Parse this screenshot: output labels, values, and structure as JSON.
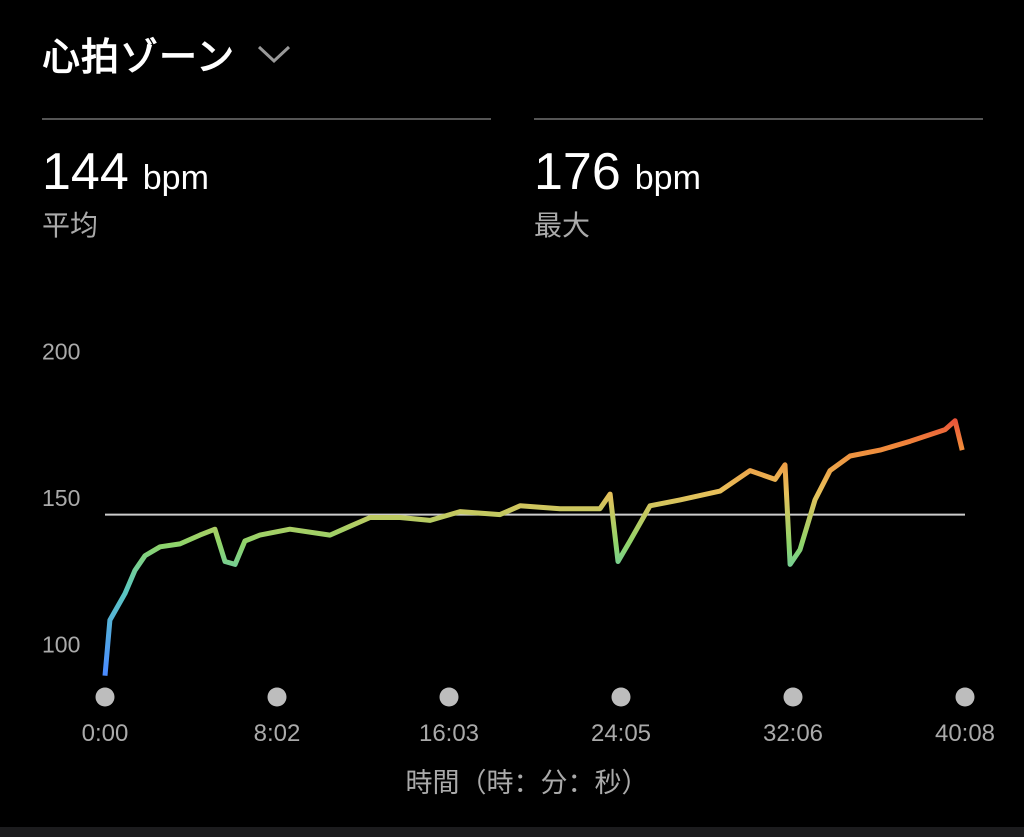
{
  "header": {
    "title": "心拍ゾーン",
    "dropdown_icon": "chevron-down-icon"
  },
  "stats": [
    {
      "value": "144",
      "unit": "bpm",
      "label": "平均"
    },
    {
      "value": "176",
      "unit": "bpm",
      "label": "最大"
    }
  ],
  "chart_data": {
    "type": "line",
    "xlabel": "時間（時：分：秒）",
    "ylabel": "",
    "ylim": [
      90,
      200
    ],
    "yticks": [
      100,
      150,
      200
    ],
    "ytick_labels": [
      "100",
      "150",
      "200"
    ],
    "xticks": [
      "0:00",
      "8:02",
      "16:03",
      "24:05",
      "32:06",
      "40:08"
    ],
    "xlim_minutes": [
      0,
      40.13
    ],
    "reference_line": {
      "value": 144
    },
    "grid": false,
    "color_scale": {
      "low": "#4a8cff",
      "mid_low": "#5cc8c0",
      "mid": "#8fd46a",
      "mid_high": "#e8c05a",
      "high": "#f0883a",
      "max": "#e84a3a"
    },
    "series": [
      {
        "x_minutes": [
          0,
          0.23,
          0.93,
          1.4,
          1.87,
          2.57,
          3.5,
          4.43,
          5.13,
          5.6,
          6.07,
          6.53,
          7.23,
          8.63,
          10.5,
          11.43,
          12.37,
          13.77,
          15.17,
          16.57,
          18.43,
          19.37,
          21.23,
          23.1,
          23.57,
          23.94,
          24.5,
          25.43,
          26.83,
          28.7,
          30.1,
          31.27,
          31.73,
          31.97,
          32.43,
          33.13,
          33.83,
          34.77,
          36.17,
          37.57,
          39.2,
          39.67,
          40.0
        ],
        "bpm": [
          89,
          108,
          117,
          125,
          130,
          133,
          134,
          137,
          139,
          128,
          127,
          135,
          137,
          139,
          137,
          140,
          143,
          143,
          142,
          145,
          144,
          147,
          146,
          146,
          151,
          128,
          135,
          147,
          149,
          152,
          159,
          156,
          161,
          127,
          132,
          149,
          159,
          164,
          166,
          169,
          173,
          176,
          166
        ]
      }
    ]
  }
}
